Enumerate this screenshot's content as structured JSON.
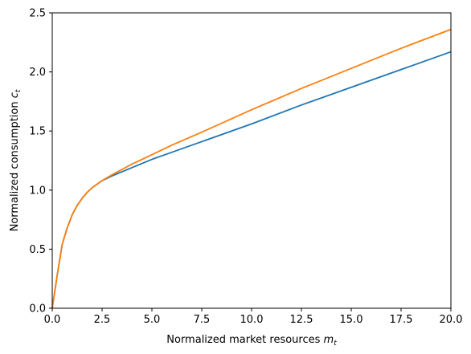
{
  "chart_data": {
    "type": "line",
    "title": "",
    "xlabel": "Normalized market resources",
    "xlabel_var": "m",
    "xlabel_sub": "t",
    "ylabel": "Normalized consumption",
    "ylabel_var": "c",
    "ylabel_sub": "t",
    "xlim": [
      0.0,
      20.0
    ],
    "ylim": [
      0.0,
      2.5
    ],
    "xticks": [
      0.0,
      2.5,
      5.0,
      7.5,
      10.0,
      12.5,
      15.0,
      17.5,
      20.0
    ],
    "xtick_labels": [
      "0.0",
      "2.5",
      "5.0",
      "7.5",
      "10.0",
      "12.5",
      "15.0",
      "17.5",
      "20.0"
    ],
    "yticks": [
      0.0,
      0.5,
      1.0,
      1.5,
      2.0,
      2.5
    ],
    "ytick_labels": [
      "0.0",
      "0.5",
      "1.0",
      "1.5",
      "2.0",
      "2.5"
    ],
    "grid": false,
    "legend": "none",
    "series": [
      {
        "color": "#1f77b4",
        "x": [
          0.0,
          0.25,
          0.5,
          0.75,
          1.0,
          1.25,
          1.5,
          1.75,
          2.0,
          2.5,
          3.0,
          4.0,
          5.0,
          6.0,
          7.5,
          10.0,
          12.5,
          15.0,
          17.5,
          20.0
        ],
        "y": [
          0.0,
          0.28,
          0.54,
          0.68,
          0.79,
          0.87,
          0.93,
          0.98,
          1.02,
          1.08,
          1.12,
          1.19,
          1.26,
          1.32,
          1.41,
          1.56,
          1.72,
          1.87,
          2.02,
          2.17
        ]
      },
      {
        "color": "#ff7f0e",
        "x": [
          0.0,
          0.25,
          0.5,
          0.75,
          1.0,
          1.25,
          1.5,
          1.75,
          2.0,
          2.5,
          3.0,
          4.0,
          5.0,
          6.0,
          7.5,
          10.0,
          12.5,
          15.0,
          17.5,
          20.0
        ],
        "y": [
          0.0,
          0.28,
          0.54,
          0.68,
          0.79,
          0.87,
          0.93,
          0.98,
          1.02,
          1.08,
          1.13,
          1.22,
          1.3,
          1.38,
          1.49,
          1.68,
          1.86,
          2.03,
          2.2,
          2.36
        ]
      }
    ]
  }
}
